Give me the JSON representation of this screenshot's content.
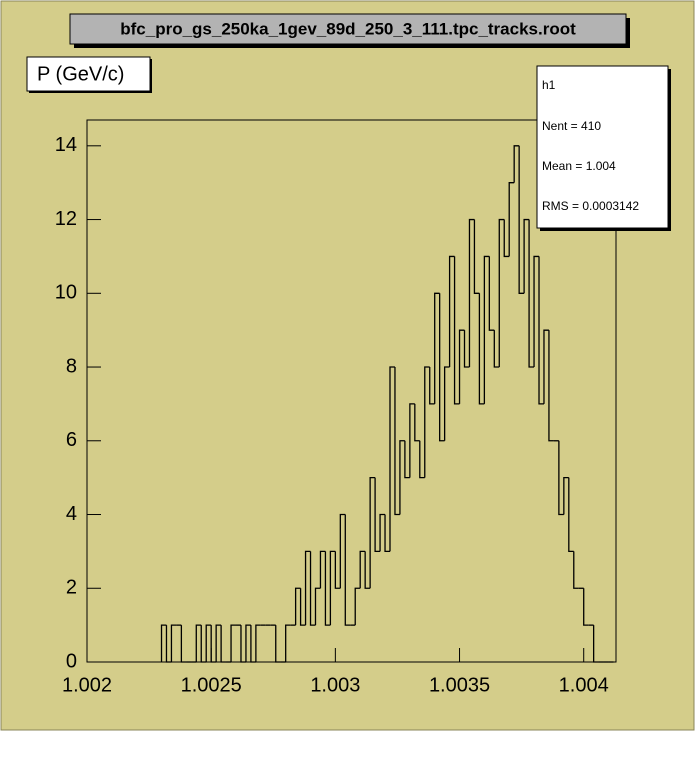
{
  "chart_data": {
    "type": "histogram",
    "title": "bfc_pro_gs_250ka_1gev_89d_250_3_111.tpc_tracks.root",
    "y_label": "P (GeV/c)",
    "stats": {
      "name": "h1",
      "entries": "Nent = 410",
      "mean": "Mean  =  1.004",
      "rms": "RMS   = 0.0003142"
    },
    "bins": [
      1.0023,
      1.00232,
      1.00234,
      1.00236,
      1.00238,
      1.0024,
      1.00242,
      1.00244,
      1.00246,
      1.00248,
      1.0025,
      1.00252,
      1.00254,
      1.00256,
      1.00258,
      1.0026,
      1.00262,
      1.00264,
      1.00266,
      1.00268,
      1.0027,
      1.00272,
      1.00274,
      1.00276,
      1.00278,
      1.0028,
      1.00282,
      1.00284,
      1.00286,
      1.00288,
      1.0029,
      1.00292,
      1.00294,
      1.00296,
      1.00298,
      1.003,
      1.00302,
      1.00304,
      1.00306,
      1.00308,
      1.0031,
      1.00312,
      1.00314,
      1.00316,
      1.00318,
      1.0032,
      1.00322,
      1.00324,
      1.00326,
      1.00328,
      1.0033,
      1.00332,
      1.00334,
      1.00336,
      1.00338,
      1.0034,
      1.00342,
      1.00344,
      1.00346,
      1.00348,
      1.0035,
      1.00352,
      1.00354,
      1.00356,
      1.00358,
      1.0036,
      1.00362,
      1.00364,
      1.00366,
      1.00368,
      1.0037,
      1.00372,
      1.00374,
      1.00376,
      1.00378,
      1.0038,
      1.00382,
      1.00384,
      1.00386,
      1.00388,
      1.0039,
      1.00392,
      1.00394,
      1.00396,
      1.00398,
      1.004,
      1.00402,
      1.00404,
      1.00406,
      1.00408,
      1.0041,
      1.00412
    ],
    "values": [
      1,
      0,
      1,
      1,
      0,
      0,
      0,
      1,
      0,
      1,
      0,
      1,
      0,
      0,
      1,
      1,
      0,
      1,
      0,
      1,
      1,
      1,
      1,
      0,
      0,
      1,
      1,
      2,
      1,
      3,
      1,
      2,
      3,
      1,
      3,
      2,
      4,
      1,
      1,
      2,
      3,
      2,
      5,
      3,
      4,
      3,
      8,
      4,
      6,
      5,
      7,
      6,
      5,
      8,
      7,
      10,
      6,
      8,
      11,
      7,
      9,
      8,
      12,
      10,
      7,
      11,
      9,
      8,
      12,
      11,
      13,
      14,
      10,
      12,
      8,
      11,
      7,
      9,
      6,
      6,
      4,
      5,
      3,
      2,
      2,
      1,
      1,
      0,
      0,
      0,
      0
    ],
    "color": "#000000",
    "xlim": [
      1.002,
      1.00413
    ],
    "xticks": [
      1.002,
      1.0025,
      1.003,
      1.0035,
      1.004
    ],
    "ylim": [
      0,
      14.7
    ],
    "yticks": [
      0,
      2,
      4,
      6,
      8,
      10,
      12,
      14
    ]
  }
}
